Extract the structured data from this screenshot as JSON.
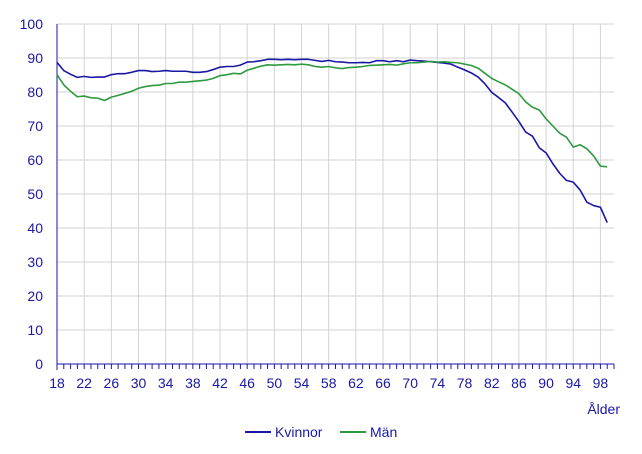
{
  "chart_data": {
    "type": "line",
    "title": "",
    "xlabel": "Ålder",
    "ylabel": "",
    "xlim": [
      18,
      100
    ],
    "ylim": [
      0,
      100
    ],
    "grid": true,
    "legend_position": "bottom-center",
    "y_ticks": [
      "0",
      "10",
      "20",
      "30",
      "40",
      "50",
      "60",
      "70",
      "80",
      "90",
      "100"
    ],
    "x_ticks": [
      "18",
      "22",
      "26",
      "30",
      "34",
      "38",
      "42",
      "46",
      "50",
      "54",
      "58",
      "62",
      "66",
      "70",
      "74",
      "78",
      "82",
      "86",
      "90",
      "94",
      "98"
    ],
    "x": [
      18,
      19,
      20,
      21,
      22,
      23,
      24,
      25,
      26,
      27,
      28,
      29,
      30,
      31,
      32,
      33,
      34,
      35,
      36,
      37,
      38,
      39,
      40,
      41,
      42,
      43,
      44,
      45,
      46,
      47,
      48,
      49,
      50,
      51,
      52,
      53,
      54,
      55,
      56,
      57,
      58,
      59,
      60,
      61,
      62,
      63,
      64,
      65,
      66,
      67,
      68,
      69,
      70,
      71,
      72,
      73,
      74,
      75,
      76,
      77,
      78,
      79,
      80,
      81,
      82,
      83,
      84,
      85,
      86,
      87,
      88,
      89,
      90,
      91,
      92,
      93,
      94,
      95,
      96,
      97,
      98,
      99
    ],
    "series": [
      {
        "name": "Kvinnor",
        "color": "#1a17a6",
        "values": [
          88.7,
          86.3,
          85.2,
          84.3,
          84.6,
          84.3,
          84.4,
          84.4,
          85.1,
          85.4,
          85.4,
          85.8,
          86.3,
          86.3,
          86.0,
          86.1,
          86.3,
          86.1,
          86.1,
          86.1,
          85.8,
          85.8,
          86.0,
          86.6,
          87.3,
          87.5,
          87.5,
          87.9,
          88.8,
          88.9,
          89.2,
          89.6,
          89.6,
          89.5,
          89.6,
          89.5,
          89.6,
          89.6,
          89.3,
          89.0,
          89.3,
          88.9,
          88.8,
          88.6,
          88.6,
          88.7,
          88.6,
          89.2,
          89.2,
          88.9,
          89.2,
          88.9,
          89.4,
          89.2,
          89.1,
          88.9,
          88.7,
          88.5,
          88.2,
          87.3,
          86.5,
          85.6,
          84.4,
          82.4,
          79.9,
          78.4,
          76.8,
          74.1,
          71.3,
          68.2,
          67.0,
          63.6,
          62.1,
          58.9,
          56.1,
          54.0,
          53.5,
          51.2,
          47.6,
          46.6,
          46.1,
          41.6
        ]
      },
      {
        "name": "Män",
        "color": "#2e9a3e",
        "values": [
          85.1,
          82.1,
          80.2,
          78.6,
          78.8,
          78.3,
          78.2,
          77.5,
          78.5,
          79.0,
          79.6,
          80.2,
          81.1,
          81.6,
          81.9,
          82.0,
          82.5,
          82.5,
          82.9,
          82.9,
          83.1,
          83.3,
          83.5,
          84.0,
          84.8,
          85.1,
          85.5,
          85.3,
          86.4,
          87.0,
          87.6,
          88.0,
          87.9,
          88.0,
          88.1,
          88.0,
          88.2,
          88.0,
          87.5,
          87.3,
          87.5,
          87.1,
          86.9,
          87.2,
          87.3,
          87.5,
          87.8,
          87.9,
          88.0,
          88.1,
          87.9,
          88.3,
          88.6,
          88.6,
          88.8,
          89.0,
          88.8,
          88.9,
          88.7,
          88.6,
          88.2,
          87.8,
          87.0,
          85.5,
          84.0,
          83.0,
          82.1,
          80.8,
          79.5,
          77.1,
          75.5,
          74.7,
          72.1,
          70.0,
          67.9,
          66.7,
          63.8,
          64.5,
          63.3,
          61.2,
          58.2,
          58.0
        ]
      }
    ]
  }
}
